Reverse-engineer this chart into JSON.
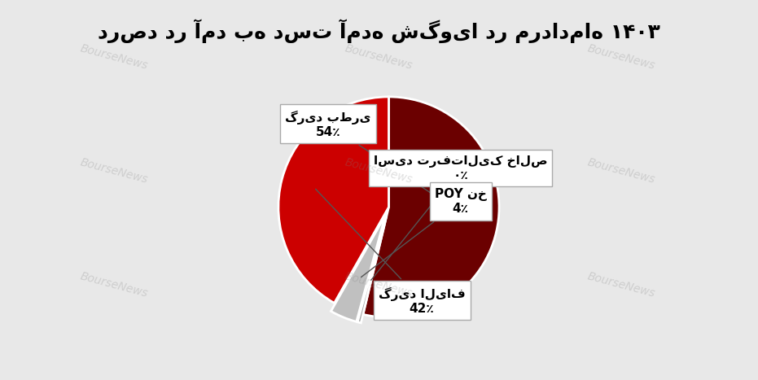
{
  "title": "درصد در آمد به دست آمده شگویا در مردادماه ۱۴۰۳",
  "labels": [
    "گرید بطری",
    "اسید ترفتالیک خالص",
    "POY نخ",
    "گرید الیاف"
  ],
  "values": [
    54,
    0.5,
    4,
    42
  ],
  "display_pcts": [
    "54٪",
    "۰٪",
    "4٪",
    "42٪"
  ],
  "colors": [
    "#6B0000",
    "#A0A0A0",
    "#C0C0C0",
    "#CC0000"
  ],
  "explode": [
    0.0,
    0.08,
    0.08,
    0.0
  ],
  "background_color": "#E8E8E8",
  "title_fontsize": 18,
  "watermark": "BourseNews"
}
